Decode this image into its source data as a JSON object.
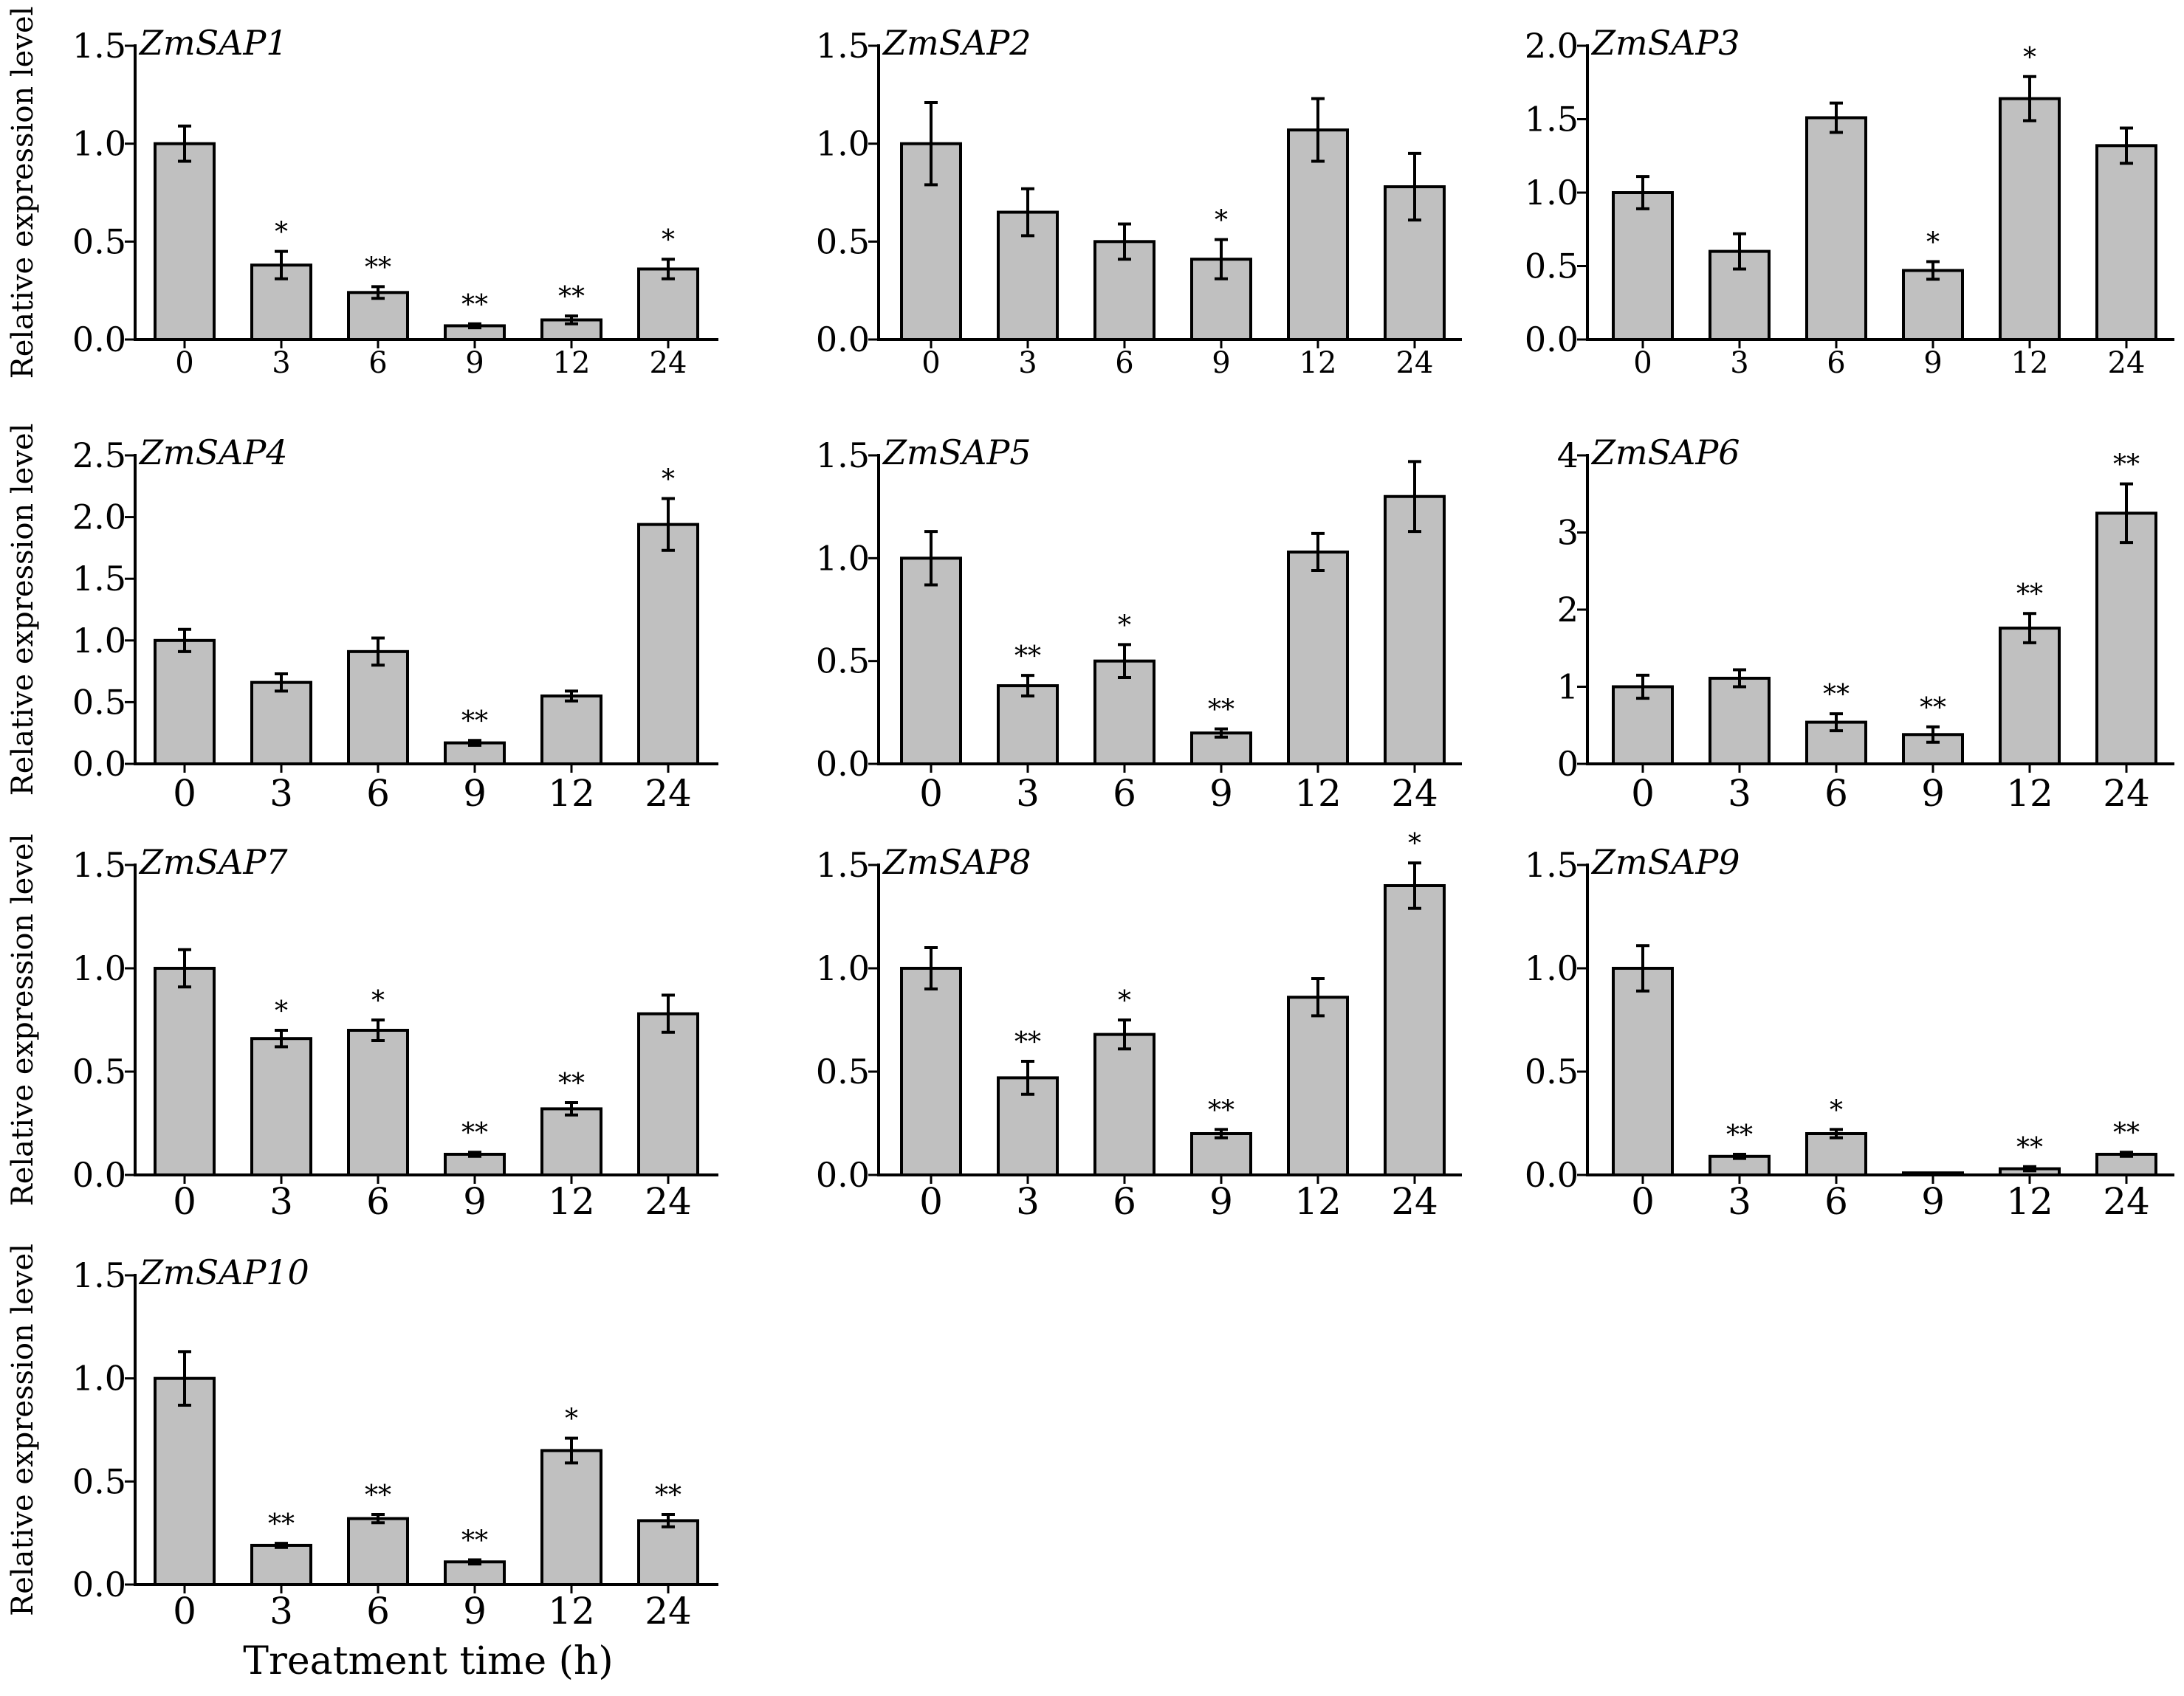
{
  "figure": {
    "ylabel": "Relative expression level",
    "xlabel": "Treatment time (h)"
  },
  "colors": {
    "bar": "#c0c0c0",
    "stroke": "#000000",
    "background": "#ffffff"
  },
  "chart_data": [
    {
      "type": "bar",
      "title": "ZmSAP1",
      "categories": [
        "0",
        "3",
        "6",
        "9",
        "12",
        "24"
      ],
      "values": [
        1.0,
        0.38,
        0.24,
        0.07,
        0.1,
        0.36
      ],
      "errors": [
        0.09,
        0.07,
        0.03,
        0.01,
        0.02,
        0.05
      ],
      "significance": [
        "",
        "*",
        "**",
        "**",
        "**",
        "*"
      ],
      "ylim": [
        0,
        1.5
      ],
      "yticks": [
        "0.0",
        "0.5",
        "1.0",
        "1.5"
      ]
    },
    {
      "type": "bar",
      "title": "ZmSAP2",
      "categories": [
        "0",
        "3",
        "6",
        "9",
        "12",
        "24"
      ],
      "values": [
        1.0,
        0.65,
        0.5,
        0.41,
        1.07,
        0.78
      ],
      "errors": [
        0.21,
        0.12,
        0.09,
        0.1,
        0.16,
        0.17
      ],
      "significance": [
        "",
        "",
        "",
        "*",
        "",
        ""
      ],
      "ylim": [
        0,
        1.5
      ],
      "yticks": [
        "0.0",
        "0.5",
        "1.0",
        "1.5"
      ]
    },
    {
      "type": "bar",
      "title": "ZmSAP3",
      "categories": [
        "0",
        "3",
        "6",
        "9",
        "12",
        "24"
      ],
      "values": [
        1.0,
        0.6,
        1.51,
        0.47,
        1.64,
        1.32
      ],
      "errors": [
        0.11,
        0.12,
        0.1,
        0.06,
        0.15,
        0.12
      ],
      "significance": [
        "",
        "",
        "",
        "*",
        "*",
        ""
      ],
      "ylim": [
        0,
        2.0
      ],
      "yticks": [
        "0.0",
        "0.5",
        "1.0",
        "1.5",
        "2.0"
      ]
    },
    {
      "type": "bar",
      "title": "ZmSAP4",
      "categories": [
        "0",
        "3",
        "6",
        "9",
        "12",
        "24"
      ],
      "values": [
        1.0,
        0.66,
        0.91,
        0.17,
        0.55,
        1.94
      ],
      "errors": [
        0.09,
        0.07,
        0.11,
        0.02,
        0.04,
        0.21
      ],
      "significance": [
        "",
        "",
        "",
        "**",
        "",
        "*"
      ],
      "ylim": [
        0,
        2.5
      ],
      "yticks": [
        "0.0",
        "0.5",
        "1.0",
        "1.5",
        "2.0",
        "2.5"
      ]
    },
    {
      "type": "bar",
      "title": "ZmSAP5",
      "categories": [
        "0",
        "3",
        "6",
        "9",
        "12",
        "24"
      ],
      "values": [
        1.0,
        0.38,
        0.5,
        0.15,
        1.03,
        1.3
      ],
      "errors": [
        0.13,
        0.05,
        0.08,
        0.02,
        0.09,
        0.17
      ],
      "significance": [
        "",
        "**",
        "*",
        "**",
        "",
        ""
      ],
      "ylim": [
        0,
        1.5
      ],
      "yticks": [
        "0.0",
        "0.5",
        "1.0",
        "1.5"
      ]
    },
    {
      "type": "bar",
      "title": "ZmSAP6",
      "categories": [
        "0",
        "3",
        "6",
        "9",
        "12",
        "24"
      ],
      "values": [
        1.0,
        1.11,
        0.54,
        0.38,
        1.76,
        3.25
      ],
      "errors": [
        0.15,
        0.11,
        0.11,
        0.1,
        0.19,
        0.38
      ],
      "significance": [
        "",
        "",
        "**",
        "**",
        "**",
        "**"
      ],
      "ylim": [
        0,
        4
      ],
      "yticks": [
        "0",
        "1",
        "2",
        "3",
        "4"
      ]
    },
    {
      "type": "bar",
      "title": "ZmSAP7",
      "categories": [
        "0",
        "3",
        "6",
        "9",
        "12",
        "24"
      ],
      "values": [
        1.0,
        0.66,
        0.7,
        0.1,
        0.32,
        0.78
      ],
      "errors": [
        0.09,
        0.04,
        0.05,
        0.01,
        0.03,
        0.09
      ],
      "significance": [
        "",
        "*",
        "*",
        "**",
        "**",
        ""
      ],
      "ylim": [
        0,
        1.5
      ],
      "yticks": [
        "0.0",
        "0.5",
        "1.0",
        "1.5"
      ]
    },
    {
      "type": "bar",
      "title": "ZmSAP8",
      "categories": [
        "0",
        "3",
        "6",
        "9",
        "12",
        "24"
      ],
      "values": [
        1.0,
        0.47,
        0.68,
        0.2,
        0.86,
        1.4
      ],
      "errors": [
        0.1,
        0.08,
        0.07,
        0.02,
        0.09,
        0.11
      ],
      "significance": [
        "",
        "**",
        "*",
        "**",
        "",
        "*"
      ],
      "ylim": [
        0,
        1.5
      ],
      "yticks": [
        "0.0",
        "0.5",
        "1.0",
        "1.5"
      ]
    },
    {
      "type": "bar",
      "title": "ZmSAP9",
      "categories": [
        "0",
        "3",
        "6",
        "9",
        "12",
        "24"
      ],
      "values": [
        1.0,
        0.09,
        0.2,
        0.01,
        0.03,
        0.1
      ],
      "errors": [
        0.11,
        0.01,
        0.02,
        0.0,
        0.01,
        0.01
      ],
      "significance": [
        "",
        "**",
        "*",
        "",
        "**",
        "**"
      ],
      "ylim": [
        0,
        1.5
      ],
      "yticks": [
        "0.0",
        "0.5",
        "1.0",
        "1.5"
      ]
    },
    {
      "type": "bar",
      "title": "ZmSAP10",
      "categories": [
        "0",
        "3",
        "6",
        "9",
        "12",
        "24"
      ],
      "values": [
        1.0,
        0.19,
        0.32,
        0.11,
        0.65,
        0.31
      ],
      "errors": [
        0.13,
        0.01,
        0.02,
        0.01,
        0.06,
        0.03
      ],
      "significance": [
        "",
        "**",
        "**",
        "**",
        "*",
        "**"
      ],
      "ylim": [
        0,
        1.5
      ],
      "yticks": [
        "0.0",
        "0.5",
        "1.0",
        "1.5"
      ]
    }
  ]
}
